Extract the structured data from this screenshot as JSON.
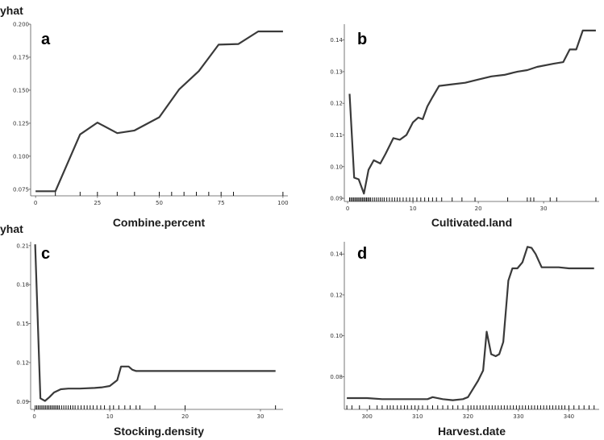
{
  "chart_data": [
    {
      "type": "line",
      "panel_label": "a",
      "ylabel": "yhat",
      "xlabel": "Combine.percent",
      "xlim": [
        -2,
        102
      ],
      "ylim": [
        0.07,
        0.2
      ],
      "x_ticks": [
        0,
        25,
        50,
        75,
        100
      ],
      "x_tick_labels": [
        "0",
        "25",
        "50",
        "75",
        "100"
      ],
      "y_ticks": [
        0.075,
        0.1,
        0.125,
        0.15,
        0.175,
        0.2
      ],
      "y_tick_labels": [
        "0.075",
        "0.100",
        "0.125",
        "0.150",
        "0.175",
        "0.200"
      ],
      "series": [
        {
          "x": [
            0,
            8,
            18,
            25,
            33,
            40,
            50,
            58,
            66,
            74,
            82,
            90,
            100
          ],
          "y": [
            0.0735,
            0.0735,
            0.1165,
            0.1255,
            0.1175,
            0.1195,
            0.1295,
            0.1505,
            0.1645,
            0.1845,
            0.185,
            0.1945,
            0.1945
          ]
        }
      ],
      "rug": [
        8,
        18,
        25,
        33,
        40,
        50,
        55,
        60,
        65,
        70,
        75,
        80,
        100
      ]
    },
    {
      "type": "line",
      "panel_label": "b",
      "ylabel": "",
      "xlabel": "Cultivated.land",
      "xlim": [
        -0.5,
        38.5
      ],
      "ylim": [
        0.089,
        0.145
      ],
      "x_ticks": [
        0,
        10,
        20,
        30
      ],
      "x_tick_labels": [
        "0",
        "10",
        "20",
        "30"
      ],
      "y_ticks": [
        0.09,
        0.1,
        0.11,
        0.12,
        0.13,
        0.14
      ],
      "y_tick_labels": [
        "0.09",
        "0.10",
        "0.11",
        "0.12",
        "0.13",
        "0.14"
      ],
      "series": [
        {
          "x": [
            0.3,
            1.0,
            1.7,
            2.5,
            3.2,
            4.0,
            5.0,
            5.8,
            7.0,
            8.0,
            9.0,
            10.0,
            10.8,
            11.5,
            12.2,
            13.0,
            14.0,
            16.0,
            18.0,
            20.0,
            22.0,
            24.0,
            26.0,
            27.5,
            29.0,
            31.5,
            33.0,
            34.0,
            35.0,
            36.0,
            38.0
          ],
          "y": [
            0.123,
            0.0965,
            0.096,
            0.0915,
            0.099,
            0.102,
            0.101,
            0.104,
            0.109,
            0.1085,
            0.11,
            0.114,
            0.1155,
            0.115,
            0.119,
            0.122,
            0.1255,
            0.126,
            0.1265,
            0.1275,
            0.1285,
            0.129,
            0.13,
            0.1305,
            0.1315,
            0.1325,
            0.133,
            0.137,
            0.137,
            0.143,
            0.143
          ]
        }
      ],
      "rug": [
        0.3,
        0.5,
        0.7,
        0.9,
        1.1,
        1.3,
        1.5,
        1.7,
        1.9,
        2.1,
        2.3,
        2.5,
        2.7,
        2.9,
        3.1,
        3.3,
        3.5,
        3.8,
        4.1,
        4.4,
        4.7,
        5.0,
        5.3,
        5.6,
        6.0,
        6.4,
        6.8,
        7.2,
        7.6,
        8.0,
        8.5,
        9.0,
        9.5,
        10.0,
        10.6,
        11.2,
        11.8,
        12.4,
        13.0,
        13.6,
        14.4,
        16.0,
        17.5,
        19.5,
        24.5,
        27.5,
        28.0,
        28.5,
        31.0,
        32.0,
        38.0
      ]
    },
    {
      "type": "line",
      "panel_label": "c",
      "ylabel": "yhat",
      "xlabel": "Stocking.density",
      "xlim": [
        -0.5,
        33
      ],
      "ylim": [
        0.084,
        0.213
      ],
      "x_ticks": [
        0,
        10,
        20,
        30
      ],
      "x_tick_labels": [
        "0",
        "10",
        "20",
        "30"
      ],
      "y_ticks": [
        0.09,
        0.12,
        0.15,
        0.18,
        0.21
      ],
      "y_tick_labels": [
        "0.09",
        "0.12",
        "0.15",
        "0.18",
        "0.21"
      ],
      "series": [
        {
          "x": [
            0.1,
            0.8,
            1.4,
            2.0,
            2.6,
            3.5,
            4.5,
            6.0,
            8.0,
            9.0,
            10.0,
            11.0,
            11.5,
            12.5,
            13.0,
            13.5,
            15.0,
            20.0,
            25.0,
            32.0
          ],
          "y": [
            0.211,
            0.0925,
            0.0905,
            0.0935,
            0.097,
            0.0995,
            0.1,
            0.1,
            0.1005,
            0.101,
            0.102,
            0.1065,
            0.117,
            0.117,
            0.1145,
            0.1135,
            0.1135,
            0.1135,
            0.1135,
            0.1135
          ]
        }
      ],
      "rug": [
        0.1,
        0.3,
        0.5,
        0.7,
        0.9,
        1.1,
        1.3,
        1.5,
        1.7,
        1.9,
        2.1,
        2.3,
        2.5,
        2.7,
        2.9,
        3.1,
        3.3,
        3.6,
        3.9,
        4.2,
        4.5,
        4.8,
        5.1,
        5.4,
        5.8,
        6.2,
        6.6,
        7.0,
        7.4,
        7.8,
        8.3,
        8.8,
        9.3,
        10.0,
        10.5,
        11.2,
        12.0,
        12.7,
        13.5,
        14.0,
        16.0,
        20.0,
        32.0
      ]
    },
    {
      "type": "line",
      "panel_label": "d",
      "ylabel": "",
      "xlabel": "Harvest.date",
      "xlim": [
        295.5,
        346
      ],
      "ylim": [
        0.064,
        0.146
      ],
      "x_ticks": [
        300,
        310,
        320,
        330,
        340
      ],
      "x_tick_labels": [
        "300",
        "310",
        "320",
        "330",
        "340"
      ],
      "y_ticks": [
        0.08,
        0.1,
        0.12,
        0.14
      ],
      "y_tick_labels": [
        "0.08",
        "0.10",
        "0.12",
        "0.14"
      ],
      "series": [
        {
          "x": [
            296,
            300,
            303,
            306,
            309,
            312,
            313,
            315,
            317,
            319,
            320,
            321,
            322,
            323,
            323.7,
            324.6,
            325.5,
            326.2,
            327,
            328,
            328.8,
            329.8,
            330.8,
            331.8,
            332.6,
            333.4,
            334.6,
            336,
            338,
            340,
            345
          ],
          "y": [
            0.0695,
            0.0695,
            0.069,
            0.069,
            0.069,
            0.069,
            0.07,
            0.069,
            0.0685,
            0.069,
            0.07,
            0.074,
            0.078,
            0.083,
            0.102,
            0.091,
            0.09,
            0.091,
            0.097,
            0.127,
            0.133,
            0.133,
            0.136,
            0.1435,
            0.143,
            0.14,
            0.1335,
            0.1335,
            0.1335,
            0.133,
            0.133
          ]
        }
      ],
      "rug": [
        296,
        297,
        298.5,
        300.5,
        302,
        303,
        304,
        304.6,
        305.2,
        306,
        306.7,
        307.4,
        308,
        308.8,
        309.5,
        310.2,
        311,
        312,
        313,
        314,
        315,
        316,
        317,
        318,
        319,
        320,
        320.6,
        321.2,
        321.8,
        322.4,
        323,
        323.6,
        324.2,
        324.8,
        325.4,
        326,
        326.6,
        327.2,
        327.8,
        328.4,
        329,
        329.6,
        330.2,
        330.8,
        331.4,
        332,
        332.6,
        333.2,
        333.8,
        334.4,
        335,
        335.6,
        336.2,
        336.8,
        337.4,
        338,
        338.6,
        339.2,
        340,
        341,
        342,
        343,
        344,
        345
      ]
    }
  ]
}
